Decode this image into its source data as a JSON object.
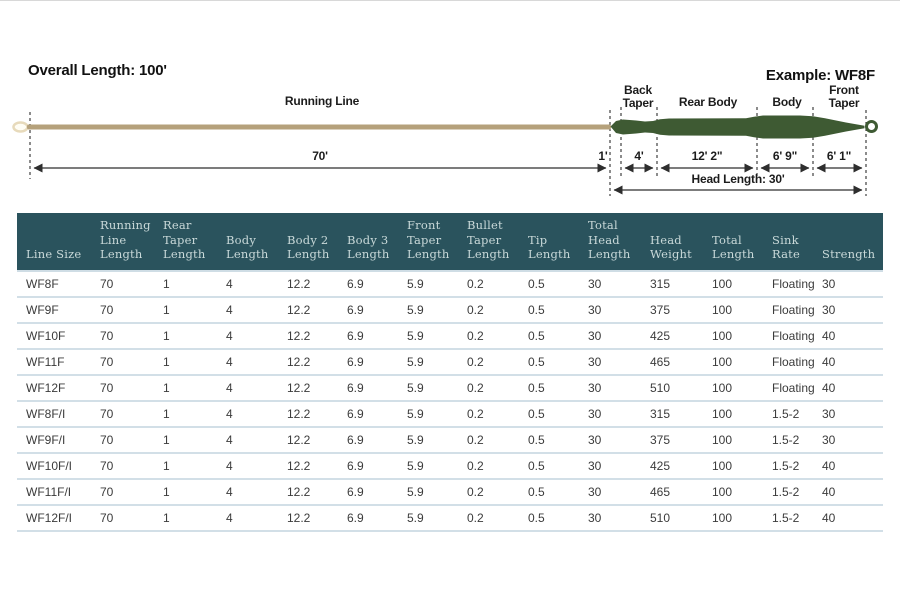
{
  "diagram": {
    "overall_length": "Overall Length: 100'",
    "example": "Example: WF8F",
    "running_line": "Running Line",
    "back_taper": "Back Taper",
    "rear_body": "Rear Body",
    "body": "Body",
    "front_taper": "Front Taper",
    "dims": {
      "running": "70'",
      "tip": "1'",
      "back_taper": "4'",
      "rear_body": "12' 2\"",
      "body": "6' 9\"",
      "front_taper": "6' 1\"",
      "head": "Head Length: 30'"
    },
    "colors": {
      "running_line": "#b5a17b",
      "head": "#3e5a33",
      "dimension_lines": "#2e2e2e"
    }
  },
  "table": {
    "header_bg": "#2a535d",
    "header_text_color": "#c9d9d9",
    "columns": [
      "Line Size",
      "Running Line Length",
      "Rear Taper Length",
      "Body Length",
      "Body 2 Length",
      "Body 3 Length",
      "Front Taper Length",
      "Bullet Taper Length",
      "Tip Length",
      "Total Head Length",
      "Head Weight",
      "Total Length",
      "Sink Rate",
      "Strength"
    ],
    "rows": [
      [
        "WF8F",
        "70",
        "1",
        "4",
        "12.2",
        "6.9",
        "5.9",
        "0.2",
        "0.5",
        "30",
        "315",
        "100",
        "Floating",
        "30"
      ],
      [
        "WF9F",
        "70",
        "1",
        "4",
        "12.2",
        "6.9",
        "5.9",
        "0.2",
        "0.5",
        "30",
        "375",
        "100",
        "Floating",
        "30"
      ],
      [
        "WF10F",
        "70",
        "1",
        "4",
        "12.2",
        "6.9",
        "5.9",
        "0.2",
        "0.5",
        "30",
        "425",
        "100",
        "Floating",
        "40"
      ],
      [
        "WF11F",
        "70",
        "1",
        "4",
        "12.2",
        "6.9",
        "5.9",
        "0.2",
        "0.5",
        "30",
        "465",
        "100",
        "Floating",
        "40"
      ],
      [
        "WF12F",
        "70",
        "1",
        "4",
        "12.2",
        "6.9",
        "5.9",
        "0.2",
        "0.5",
        "30",
        "510",
        "100",
        "Floating",
        "40"
      ],
      [
        "WF8F/I",
        "70",
        "1",
        "4",
        "12.2",
        "6.9",
        "5.9",
        "0.2",
        "0.5",
        "30",
        "315",
        "100",
        "1.5-2",
        "30"
      ],
      [
        "WF9F/I",
        "70",
        "1",
        "4",
        "12.2",
        "6.9",
        "5.9",
        "0.2",
        "0.5",
        "30",
        "375",
        "100",
        "1.5-2",
        "30"
      ],
      [
        "WF10F/I",
        "70",
        "1",
        "4",
        "12.2",
        "6.9",
        "5.9",
        "0.2",
        "0.5",
        "30",
        "425",
        "100",
        "1.5-2",
        "40"
      ],
      [
        "WF11F/I",
        "70",
        "1",
        "4",
        "12.2",
        "6.9",
        "5.9",
        "0.2",
        "0.5",
        "30",
        "465",
        "100",
        "1.5-2",
        "40"
      ],
      [
        "WF12F/I",
        "70",
        "1",
        "4",
        "12.2",
        "6.9",
        "5.9",
        "0.2",
        "0.5",
        "30",
        "510",
        "100",
        "1.5-2",
        "40"
      ]
    ]
  }
}
